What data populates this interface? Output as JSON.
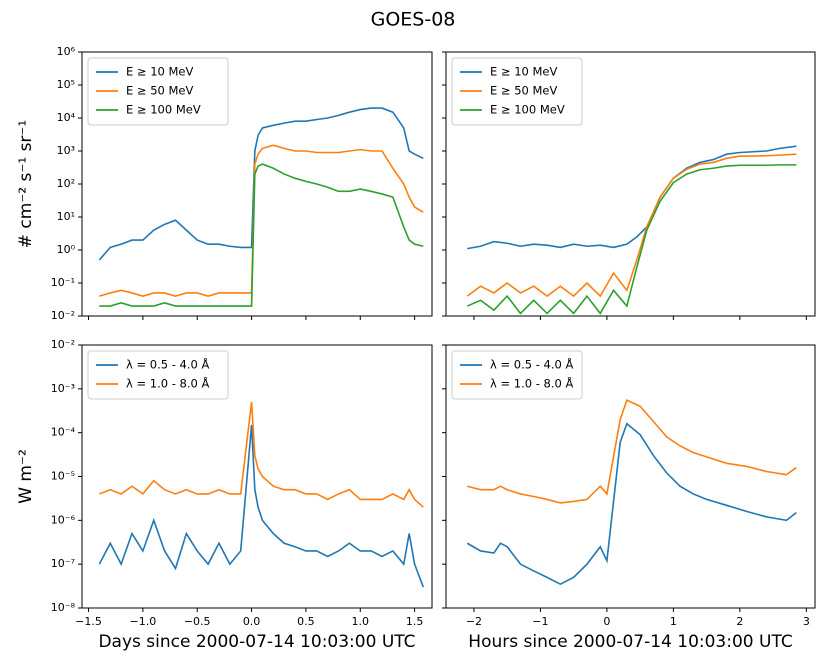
{
  "title": "GOES-08",
  "chart_data": [
    {
      "type": "line",
      "yscale": "log",
      "legend": "upper left",
      "ylabel": "# cm⁻² s⁻¹ sr⁻¹",
      "ylim": [
        0.01,
        1000000
      ],
      "yticks": [
        {
          "value": 0.01,
          "label": "10⁻²"
        },
        {
          "value": 0.1,
          "label": "10⁻¹"
        },
        {
          "value": 1,
          "label": "10⁰"
        },
        {
          "value": 10,
          "label": "10¹"
        },
        {
          "value": 100,
          "label": "10²"
        },
        {
          "value": 1000,
          "label": "10³"
        },
        {
          "value": 10000,
          "label": "10⁴"
        },
        {
          "value": 100000,
          "label": "10⁵"
        },
        {
          "value": 1000000,
          "label": "10⁶"
        }
      ],
      "x": [
        -1.4,
        -1.3,
        -1.2,
        -1.1,
        -1.0,
        -0.9,
        -0.8,
        -0.7,
        -0.6,
        -0.5,
        -0.4,
        -0.3,
        -0.2,
        -0.1,
        0.0,
        0.03,
        0.06,
        0.1,
        0.2,
        0.3,
        0.4,
        0.5,
        0.6,
        0.7,
        0.8,
        0.9,
        1.0,
        1.1,
        1.2,
        1.3,
        1.4,
        1.45,
        1.5,
        1.58
      ],
      "series": [
        {
          "name": "E ≥  10 MeV",
          "color": "#1f77b4",
          "values": [
            0.5,
            1.2,
            1.5,
            2,
            2,
            4,
            6,
            8,
            4,
            2,
            1.5,
            1.5,
            1.3,
            1.2,
            1.2,
            1000,
            3000,
            5000,
            6000,
            7000,
            8000,
            8000,
            9000,
            10000,
            12000,
            15000,
            18000,
            20000,
            20000,
            15000,
            5000,
            1000,
            800,
            600
          ]
        },
        {
          "name": "E ≥  50 MeV",
          "color": "#ff7f0e",
          "values": [
            0.04,
            0.05,
            0.06,
            0.05,
            0.04,
            0.05,
            0.05,
            0.04,
            0.05,
            0.05,
            0.04,
            0.05,
            0.05,
            0.05,
            0.05,
            400,
            800,
            1200,
            1500,
            1200,
            1000,
            1000,
            900,
            900,
            900,
            1000,
            1100,
            1000,
            1000,
            300,
            100,
            40,
            20,
            14
          ]
        },
        {
          "name": "E ≥ 100 MeV",
          "color": "#2ca02c",
          "values": [
            0.02,
            0.02,
            0.025,
            0.02,
            0.02,
            0.02,
            0.025,
            0.02,
            0.02,
            0.02,
            0.02,
            0.02,
            0.02,
            0.02,
            0.02,
            200,
            350,
            400,
            300,
            200,
            150,
            120,
            100,
            80,
            60,
            60,
            70,
            60,
            50,
            40,
            5,
            2,
            1.5,
            1.3
          ]
        }
      ]
    },
    {
      "type": "line",
      "yscale": "log",
      "legend": "upper left",
      "x": [
        -2.1,
        -1.9,
        -1.7,
        -1.5,
        -1.3,
        -1.1,
        -0.9,
        -0.7,
        -0.5,
        -0.3,
        -0.1,
        0.1,
        0.3,
        0.45,
        0.6,
        0.8,
        1.0,
        1.2,
        1.4,
        1.6,
        1.8,
        2.0,
        2.2,
        2.4,
        2.6,
        2.85
      ],
      "series": [
        {
          "name": "E ≥  10 MeV",
          "color": "#1f77b4",
          "values": [
            1.1,
            1.3,
            1.8,
            1.6,
            1.3,
            1.5,
            1.4,
            1.2,
            1.5,
            1.3,
            1.4,
            1.2,
            1.5,
            2.5,
            5,
            40,
            150,
            300,
            450,
            550,
            800,
            900,
            950,
            1000,
            1200,
            1400
          ]
        },
        {
          "name": "E ≥  50 MeV",
          "color": "#ff7f0e",
          "values": [
            0.04,
            0.08,
            0.05,
            0.1,
            0.05,
            0.08,
            0.04,
            0.08,
            0.04,
            0.1,
            0.04,
            0.2,
            0.06,
            0.5,
            5,
            40,
            150,
            280,
            400,
            450,
            600,
            700,
            700,
            720,
            750,
            800
          ]
        },
        {
          "name": "E ≥ 100 MeV",
          "color": "#2ca02c",
          "values": [
            0.02,
            0.03,
            0.015,
            0.04,
            0.012,
            0.03,
            0.012,
            0.03,
            0.012,
            0.04,
            0.012,
            0.06,
            0.02,
            0.3,
            4,
            30,
            110,
            200,
            270,
            300,
            350,
            370,
            370,
            370,
            380,
            380
          ]
        }
      ]
    },
    {
      "type": "line",
      "yscale": "log",
      "legend": "upper left",
      "ylabel": "W m⁻²",
      "xlabel": "Days since 2000-07-14 10:03:00 UTC",
      "xlim": [
        -1.56,
        1.66
      ],
      "xticks": [
        {
          "value": -1.5,
          "label": "−1.5"
        },
        {
          "value": -1.0,
          "label": "−1.0"
        },
        {
          "value": -0.5,
          "label": "−0.5"
        },
        {
          "value": 0,
          "label": "0.0"
        },
        0.5,
        {
          "value": 1,
          "label": "1.0"
        },
        1.5
      ],
      "ylim": [
        1e-08,
        0.01
      ],
      "yticks": [
        {
          "value": 1e-08,
          "label": "10⁻⁸"
        },
        {
          "value": 1e-07,
          "label": "10⁻⁷"
        },
        {
          "value": 1e-06,
          "label": "10⁻⁶"
        },
        {
          "value": 1e-05,
          "label": "10⁻⁵"
        },
        {
          "value": 0.0001,
          "label": "10⁻⁴"
        },
        {
          "value": 0.001,
          "label": "10⁻³"
        },
        {
          "value": 0.01,
          "label": "10⁻²"
        }
      ],
      "x": [
        -1.4,
        -1.3,
        -1.2,
        -1.1,
        -1.0,
        -0.9,
        -0.8,
        -0.7,
        -0.6,
        -0.5,
        -0.4,
        -0.3,
        -0.2,
        -0.1,
        0.0,
        0.03,
        0.06,
        0.1,
        0.2,
        0.3,
        0.4,
        0.5,
        0.6,
        0.7,
        0.8,
        0.9,
        1.0,
        1.1,
        1.2,
        1.3,
        1.4,
        1.45,
        1.5,
        1.58
      ],
      "series": [
        {
          "name": "λ = 0.5 - 4.0 Å",
          "color": "#1f77b4",
          "values": [
            1e-07,
            3e-07,
            1e-07,
            5e-07,
            2e-07,
            1e-06,
            2e-07,
            8e-08,
            5e-07,
            2e-07,
            1e-07,
            3e-07,
            1e-07,
            2e-07,
            0.00015,
            5e-06,
            2e-06,
            1e-06,
            5e-07,
            3e-07,
            2.5e-07,
            2e-07,
            2e-07,
            1.5e-07,
            2e-07,
            3e-07,
            2e-07,
            2e-07,
            1.5e-07,
            2e-07,
            1e-07,
            5e-07,
            1e-07,
            3e-08
          ]
        },
        {
          "name": "λ = 1.0 - 8.0 Å",
          "color": "#ff7f0e",
          "values": [
            4e-06,
            5e-06,
            4e-06,
            6e-06,
            4e-06,
            8e-06,
            5e-06,
            4e-06,
            5e-06,
            4e-06,
            4e-06,
            5e-06,
            4e-06,
            4e-06,
            0.0005,
            3e-05,
            1.5e-05,
            1e-05,
            6e-06,
            5e-06,
            5e-06,
            4e-06,
            4e-06,
            3e-06,
            4e-06,
            5e-06,
            3e-06,
            3e-06,
            3e-06,
            4e-06,
            3e-06,
            5e-06,
            3e-06,
            2e-06
          ]
        }
      ]
    },
    {
      "type": "line",
      "yscale": "log",
      "legend": "upper left",
      "xlabel": "Hours since 2000-07-14 10:03:00 UTC",
      "xlim": [
        -2.42,
        3.13
      ],
      "xticks": [
        {
          "value": -2,
          "label": "−2"
        },
        {
          "value": -1,
          "label": "−1"
        },
        0,
        1,
        2,
        3
      ],
      "x": [
        -2.1,
        -1.9,
        -1.7,
        -1.6,
        -1.5,
        -1.3,
        -1.1,
        -0.9,
        -0.7,
        -0.5,
        -0.3,
        -0.1,
        0.0,
        0.2,
        0.3,
        0.5,
        0.7,
        0.9,
        1.1,
        1.3,
        1.5,
        1.8,
        2.1,
        2.4,
        2.7,
        2.85
      ],
      "series": [
        {
          "name": "λ = 0.5 - 4.0 Å",
          "color": "#1f77b4",
          "values": [
            3e-07,
            2e-07,
            1.8e-07,
            3e-07,
            2.5e-07,
            1e-07,
            7e-08,
            5e-08,
            3.5e-08,
            5e-08,
            1e-07,
            2.5e-07,
            1.2e-07,
            6e-05,
            0.00016,
            9e-05,
            3e-05,
            1.2e-05,
            6e-06,
            4e-06,
            3e-06,
            2.2e-06,
            1.6e-06,
            1.2e-06,
            1e-06,
            1.5e-06
          ]
        },
        {
          "name": "λ = 1.0 - 8.0 Å",
          "color": "#ff7f0e",
          "values": [
            6e-06,
            5e-06,
            5e-06,
            6e-06,
            5e-06,
            4e-06,
            3.5e-06,
            3e-06,
            2.5e-06,
            2.7e-06,
            3e-06,
            6e-06,
            4e-06,
            0.0002,
            0.00055,
            0.0004,
            0.00018,
            8e-05,
            5e-05,
            3.5e-05,
            2.8e-05,
            2e-05,
            1.7e-05,
            1.3e-05,
            1.1e-05,
            1.6e-05
          ]
        }
      ]
    }
  ]
}
